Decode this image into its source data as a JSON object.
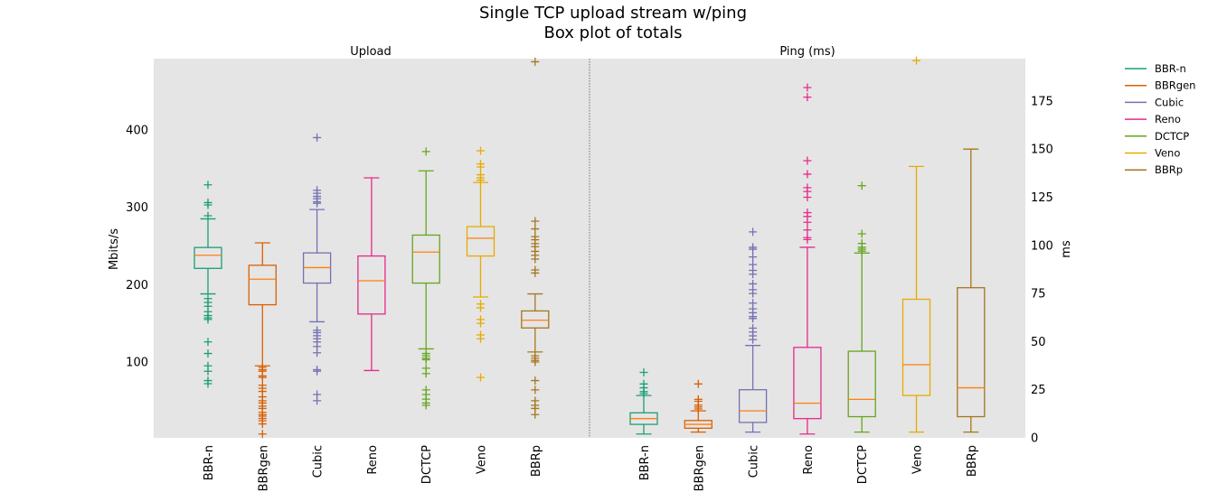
{
  "chart_data": {
    "type": "box",
    "title": "Single TCP upload stream w/ping",
    "subtitle": "Box plot of totals",
    "median_color": "#ff7f0e",
    "series": [
      {
        "name": "BBR-n",
        "color": "#1b9e77"
      },
      {
        "name": "BBRgen",
        "color": "#d95f02"
      },
      {
        "name": "Cubic",
        "color": "#7570b3"
      },
      {
        "name": "Reno",
        "color": "#e7298a"
      },
      {
        "name": "DCTCP",
        "color": "#66a61e"
      },
      {
        "name": "Veno",
        "color": "#e6ab02"
      },
      {
        "name": "BBRp",
        "color": "#a6761d"
      }
    ],
    "panels": [
      {
        "title": "Upload",
        "ylabel": "Mbits/s",
        "axis_side": "left",
        "ylim": [
          2,
          492
        ],
        "yticks": [
          100,
          200,
          300,
          400
        ],
        "boxes": [
          {
            "category": "BBR-n",
            "whisker_low": 188,
            "q1": 221,
            "median": 238,
            "q3": 248,
            "whisker_high": 285,
            "outliers": [
              329,
              306,
              303,
              289,
              182,
              177,
              172,
              165,
              160,
              157,
              155,
              126,
              111,
              95,
              88,
              76,
              72
            ]
          },
          {
            "category": "BBRgen",
            "whisker_low": 95,
            "q1": 174,
            "median": 207,
            "q3": 225,
            "whisker_high": 254,
            "outliers": [
              93,
              90,
              88,
              82,
              80,
              70,
              66,
              62,
              55,
              50,
              47,
              43,
              40,
              35,
              32,
              30,
              27,
              24,
              20,
              7
            ]
          },
          {
            "category": "Cubic",
            "whisker_low": 152,
            "q1": 202,
            "median": 222,
            "q3": 241,
            "whisker_high": 297,
            "outliers": [
              390,
              322,
              318,
              314,
              311,
              307,
              305,
              141,
              138,
              134,
              130,
              126,
              120,
              112,
              90,
              88,
              58,
              50
            ]
          },
          {
            "category": "Reno",
            "whisker_low": 89,
            "q1": 162,
            "median": 205,
            "q3": 237,
            "whisker_high": 338,
            "outliers": []
          },
          {
            "category": "DCTCP",
            "whisker_low": 117,
            "q1": 202,
            "median": 242,
            "q3": 264,
            "whisker_high": 347,
            "outliers": [
              372,
              111,
              108,
              105,
              103,
              92,
              85,
              64,
              58,
              52,
              47,
              44
            ]
          },
          {
            "category": "Veno",
            "whisker_low": 184,
            "q1": 237,
            "median": 260,
            "q3": 275,
            "whisker_high": 332,
            "outliers": [
              373,
              356,
              352,
              342,
              338,
              335,
              175,
              170,
              155,
              150,
              135,
              130,
              80
            ]
          },
          {
            "category": "BBRp",
            "whisker_low": 113,
            "q1": 144,
            "median": 154,
            "q3": 166,
            "whisker_high": 188,
            "outliers": [
              488,
              282,
              272,
              262,
              258,
              253,
              249,
              243,
              238,
              233,
              219,
              215,
              108,
              105,
              102,
              100,
              76,
              64,
              50,
              44,
              40,
              32
            ]
          }
        ]
      },
      {
        "title": "Ping (ms)",
        "ylabel": "ms",
        "axis_side": "right",
        "ylim": [
          0,
          197
        ],
        "yticks": [
          0,
          25,
          50,
          75,
          100,
          125,
          150,
          175
        ],
        "boxes": [
          {
            "category": "BBR-n",
            "whisker_low": 2,
            "q1": 7,
            "median": 10,
            "q3": 13,
            "whisker_high": 22,
            "outliers": [
              34,
              28,
              26,
              24,
              23
            ]
          },
          {
            "category": "BBRgen",
            "whisker_low": 3,
            "q1": 5,
            "median": 7,
            "q3": 9,
            "whisker_high": 14,
            "outliers": [
              28,
              20,
              19,
              17,
              16,
              15
            ]
          },
          {
            "category": "Cubic",
            "whisker_low": 3,
            "q1": 8,
            "median": 14,
            "q3": 25,
            "whisker_high": 48,
            "outliers": [
              107,
              99,
              98,
              94,
              90,
              87,
              85,
              80,
              77,
              75,
              70,
              67,
              65,
              63,
              62,
              57,
              55,
              53,
              51
            ]
          },
          {
            "category": "Reno",
            "whisker_low": 2,
            "q1": 10,
            "median": 18,
            "q3": 47,
            "whisker_high": 99,
            "outliers": [
              182,
              177,
              144,
              137,
              130,
              128,
              125,
              117,
              115,
              112,
              108,
              104,
              103
            ]
          },
          {
            "category": "DCTCP",
            "whisker_low": 3,
            "q1": 11,
            "median": 20,
            "q3": 45,
            "whisker_high": 96,
            "outliers": [
              131,
              106,
              101,
              99,
              98,
              97
            ]
          },
          {
            "category": "Veno",
            "whisker_low": 3,
            "q1": 22,
            "median": 38,
            "q3": 72,
            "whisker_high": 141,
            "outliers": [
              196
            ]
          },
          {
            "category": "BBRp",
            "whisker_low": 3,
            "q1": 11,
            "median": 26,
            "q3": 78,
            "whisker_high": 150,
            "outliers": []
          }
        ]
      }
    ]
  }
}
